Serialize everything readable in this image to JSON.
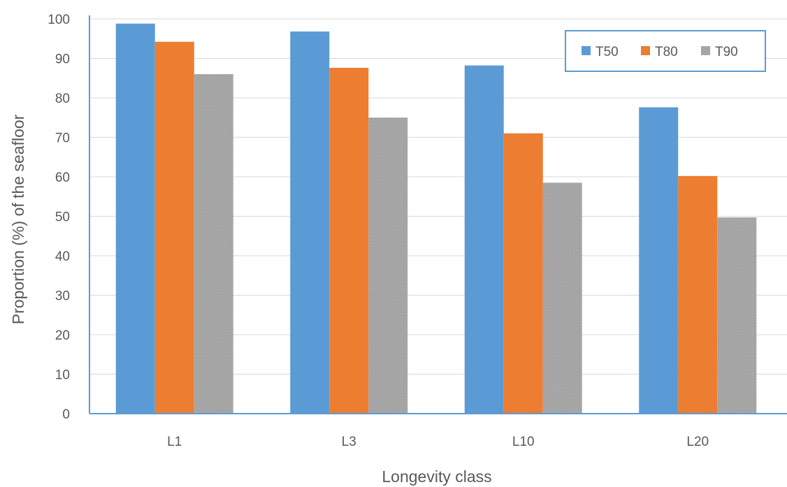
{
  "chart_data": {
    "type": "bar",
    "categories": [
      "L1",
      "L3",
      "L10",
      "L20"
    ],
    "series": [
      {
        "name": "T50",
        "values": [
          98.8,
          96.8,
          88.2,
          77.6
        ],
        "color": "#5B9BD5"
      },
      {
        "name": "T80",
        "values": [
          94.2,
          87.6,
          71.0,
          60.2
        ],
        "color": "#ED7D31"
      },
      {
        "name": "T90",
        "values": [
          86.0,
          75.0,
          58.5,
          49.7
        ],
        "color": "#A5A5A5"
      }
    ],
    "title": "",
    "xlabel": "Longevity class",
    "ylabel": "Proportion (%) of the seafloor",
    "ylim": [
      0,
      100
    ],
    "yticks": [
      0,
      10,
      20,
      30,
      40,
      50,
      60,
      70,
      80,
      90,
      100
    ],
    "grid": true,
    "legend_position": "top-right",
    "axis_color": "#5B9BD5"
  }
}
